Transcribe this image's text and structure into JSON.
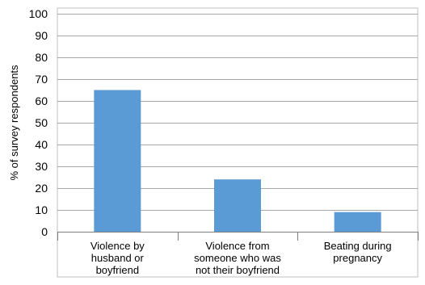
{
  "chart_data": {
    "type": "bar",
    "title": "",
    "xlabel": "",
    "ylabel": "% of survey respondents",
    "ylim": [
      0,
      100
    ],
    "yticks": [
      0,
      10,
      20,
      30,
      40,
      50,
      60,
      70,
      80,
      90,
      100
    ],
    "grid": true,
    "legend": "none",
    "bar_color": "#5b9bd5",
    "grid_color": "#a6a6a6",
    "categories": [
      [
        "Violence by",
        "husband or",
        "boyfriend"
      ],
      [
        "Violence from",
        "someone who was",
        "not their boyfriend"
      ],
      [
        "Beating during",
        "pregnancy"
      ]
    ],
    "values": [
      65,
      24,
      9
    ]
  }
}
